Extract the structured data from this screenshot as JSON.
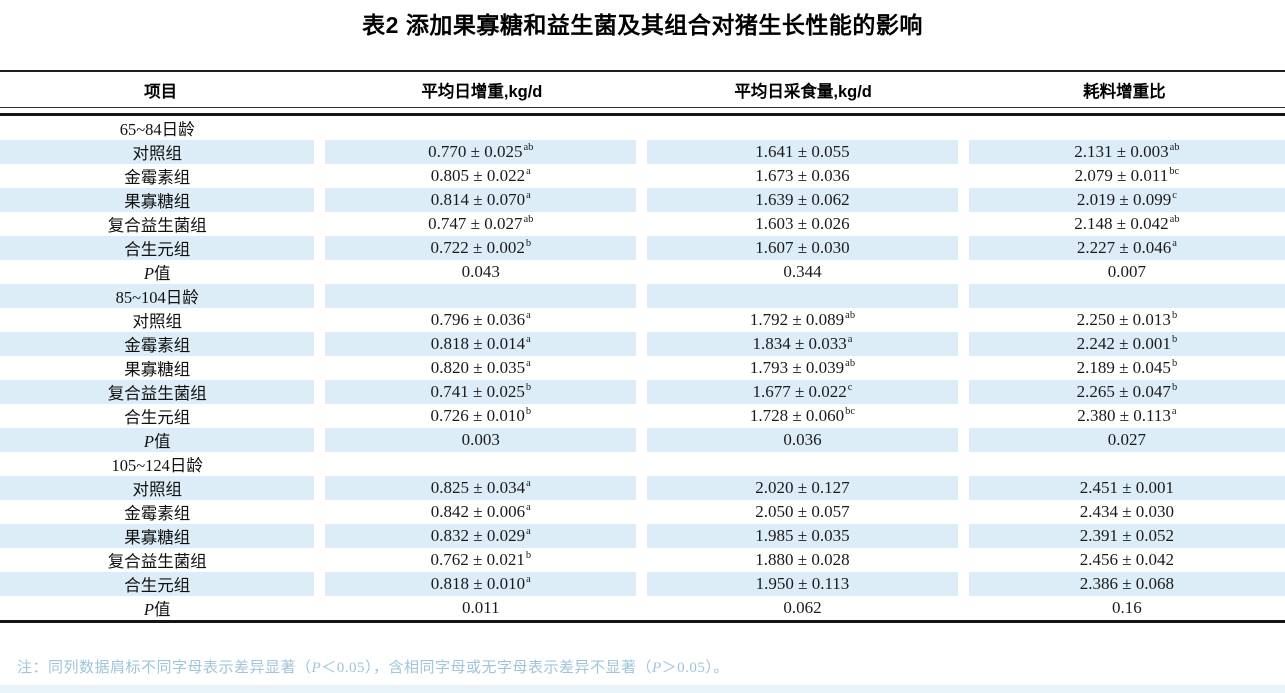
{
  "title": "表2 添加果寡糖和益生菌及其组合对猪生长性能的影响",
  "columns": [
    "项目",
    "平均日增重,kg/d",
    "平均日采食量,kg/d",
    "耗料增重比"
  ],
  "rows": [
    {
      "type": "group",
      "label": "65~84日龄",
      "cells": [
        [
          "",
          ""
        ],
        [
          "",
          ""
        ],
        [
          "",
          ""
        ]
      ]
    },
    {
      "type": "data",
      "label": "对照组",
      "cells": [
        [
          "0.770 ± 0.025",
          "ab"
        ],
        [
          "1.641 ± 0.055",
          ""
        ],
        [
          "2.131 ± 0.003",
          "ab"
        ]
      ]
    },
    {
      "type": "data",
      "label": "金霉素组",
      "cells": [
        [
          "0.805 ± 0.022",
          "a"
        ],
        [
          "1.673 ± 0.036",
          ""
        ],
        [
          "2.079 ± 0.011",
          "bc"
        ]
      ]
    },
    {
      "type": "data",
      "label": "果寡糖组",
      "cells": [
        [
          "0.814 ± 0.070",
          "a"
        ],
        [
          "1.639 ± 0.062",
          ""
        ],
        [
          "2.019 ± 0.099",
          "c"
        ]
      ]
    },
    {
      "type": "data",
      "label": "复合益生菌组",
      "cells": [
        [
          "0.747 ± 0.027",
          "ab"
        ],
        [
          "1.603 ± 0.026",
          ""
        ],
        [
          "2.148 ± 0.042",
          "ab"
        ]
      ]
    },
    {
      "type": "data",
      "label": "合生元组",
      "cells": [
        [
          "0.722 ± 0.002",
          "b"
        ],
        [
          "1.607 ± 0.030",
          ""
        ],
        [
          "2.227 ± 0.046",
          "a"
        ]
      ]
    },
    {
      "type": "p",
      "label": "P值",
      "cells": [
        [
          "0.043",
          ""
        ],
        [
          "0.344",
          ""
        ],
        [
          "0.007",
          ""
        ]
      ]
    },
    {
      "type": "group",
      "label": "85~104日龄",
      "cells": [
        [
          "",
          ""
        ],
        [
          "",
          ""
        ],
        [
          "",
          ""
        ]
      ]
    },
    {
      "type": "data",
      "label": "对照组",
      "cells": [
        [
          "0.796 ± 0.036",
          "a"
        ],
        [
          "1.792 ± 0.089",
          "ab"
        ],
        [
          "2.250 ± 0.013",
          "b"
        ]
      ]
    },
    {
      "type": "data",
      "label": "金霉素组",
      "cells": [
        [
          "0.818 ± 0.014",
          "a"
        ],
        [
          "1.834 ± 0.033",
          "a"
        ],
        [
          "2.242 ± 0.001",
          "b"
        ]
      ]
    },
    {
      "type": "data",
      "label": "果寡糖组",
      "cells": [
        [
          "0.820 ± 0.035",
          "a"
        ],
        [
          "1.793 ± 0.039",
          "ab"
        ],
        [
          "2.189 ± 0.045",
          "b"
        ]
      ]
    },
    {
      "type": "data",
      "label": "复合益生菌组",
      "cells": [
        [
          "0.741 ± 0.025",
          "b"
        ],
        [
          "1.677 ± 0.022",
          "c"
        ],
        [
          "2.265 ± 0.047",
          "b"
        ]
      ]
    },
    {
      "type": "data",
      "label": "合生元组",
      "cells": [
        [
          "0.726 ± 0.010",
          "b"
        ],
        [
          "1.728 ± 0.060",
          "bc"
        ],
        [
          "2.380 ± 0.113",
          "a"
        ]
      ]
    },
    {
      "type": "p",
      "label": "P值",
      "cells": [
        [
          "0.003",
          ""
        ],
        [
          "0.036",
          ""
        ],
        [
          "0.027",
          ""
        ]
      ]
    },
    {
      "type": "group",
      "label": "105~124日龄",
      "cells": [
        [
          "",
          ""
        ],
        [
          "",
          ""
        ],
        [
          "",
          ""
        ]
      ]
    },
    {
      "type": "data",
      "label": "对照组",
      "cells": [
        [
          "0.825 ± 0.034",
          "a"
        ],
        [
          "2.020 ± 0.127",
          ""
        ],
        [
          "2.451 ± 0.001",
          ""
        ]
      ]
    },
    {
      "type": "data",
      "label": "金霉素组",
      "cells": [
        [
          "0.842 ± 0.006",
          "a"
        ],
        [
          "2.050 ± 0.057",
          ""
        ],
        [
          "2.434 ± 0.030",
          ""
        ]
      ]
    },
    {
      "type": "data",
      "label": "果寡糖组",
      "cells": [
        [
          "0.832 ± 0.029",
          "a"
        ],
        [
          "1.985 ± 0.035",
          ""
        ],
        [
          "2.391 ± 0.052",
          ""
        ]
      ]
    },
    {
      "type": "data",
      "label": "复合益生菌组",
      "cells": [
        [
          "0.762 ± 0.021",
          "b"
        ],
        [
          "1.880 ± 0.028",
          ""
        ],
        [
          "2.456 ± 0.042",
          ""
        ]
      ]
    },
    {
      "type": "data",
      "label": "合生元组",
      "cells": [
        [
          "0.818 ± 0.010",
          "a"
        ],
        [
          "1.950 ± 0.113",
          ""
        ],
        [
          "2.386 ± 0.068",
          ""
        ]
      ]
    },
    {
      "type": "p",
      "label": "P值",
      "cells": [
        [
          "0.011",
          ""
        ],
        [
          "0.062",
          ""
        ],
        [
          "0.16",
          ""
        ]
      ]
    }
  ],
  "footnote": "注：同列数据肩标不同字母表示差异显著（P＜0.05），含相同字母或无字母表示差异不显著（P＞0.05）。",
  "colors": {
    "stripe": "#dcedf7",
    "footnote_text": "#9fc5db",
    "bottom_strip": "#e7f3f9",
    "rule": "#141414"
  }
}
